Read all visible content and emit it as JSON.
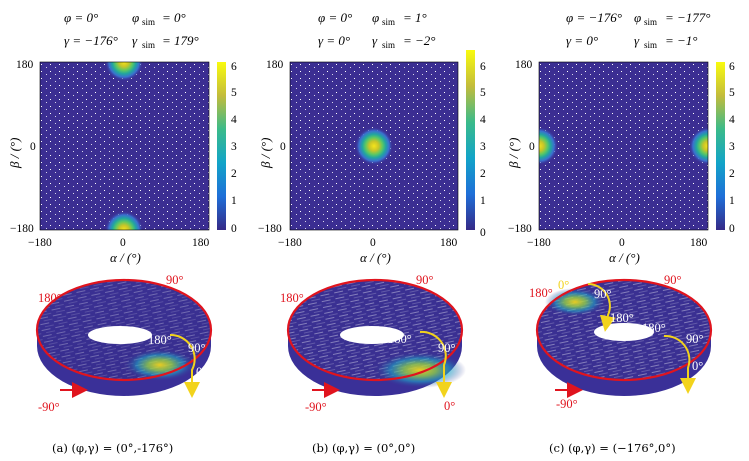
{
  "panels": [
    {
      "id": "a",
      "params": {
        "phi": "φ = 0°",
        "phi_sim_sym": "φ",
        "phi_sim_val": "= 0°",
        "gamma": "γ = −176°",
        "gamma_sim_sym": "γ",
        "gamma_sim_val": "= 179°",
        "sim": "sim"
      },
      "heatmap": {
        "blobs": [
          {
            "alpha": 0,
            "beta": 180
          },
          {
            "alpha": 0,
            "beta": -180
          }
        ]
      },
      "torus_labels": {
        "red": [
          "180°",
          "90°",
          "-90°"
        ],
        "yellow": [
          "180°",
          "90°",
          "0°"
        ]
      },
      "caption": "(a) (φ,γ) = (0°,-176°)"
    },
    {
      "id": "b",
      "params": {
        "phi": "φ = 0°",
        "phi_sim_sym": "φ",
        "phi_sim_val": "= 1°",
        "gamma": "γ = 0°",
        "gamma_sim_sym": "γ",
        "gamma_sim_val": "= −2°",
        "sim": "sim"
      },
      "heatmap": {
        "blobs": [
          {
            "alpha": 0,
            "beta": 0
          }
        ]
      },
      "torus_labels": {
        "red": [
          "180°",
          "90°",
          "-90°"
        ],
        "yellow": [
          "180°",
          "90°",
          "0°"
        ]
      },
      "caption": "(b) (φ,γ) = (0°,0°)"
    },
    {
      "id": "c",
      "params": {
        "phi": "φ = −176°",
        "phi_sim_sym": "φ",
        "phi_sim_val": "= −177°",
        "gamma": "γ = 0°",
        "gamma_sim_sym": "γ",
        "gamma_sim_val": "= −1°",
        "sim": "sim"
      },
      "heatmap": {
        "blobs": [
          {
            "alpha": -180,
            "beta": 0
          },
          {
            "alpha": 180,
            "beta": 0
          }
        ]
      },
      "torus_labels": {
        "red": [
          "180°",
          "90°",
          "-90°"
        ],
        "yellow": [
          "0°",
          "90°",
          "180°",
          "180°",
          "90°",
          "0°"
        ]
      },
      "caption": "(c) (φ,γ) = (−176°,0°)"
    }
  ],
  "axes": {
    "xlabel": "α / (°)",
    "ylabel": "β / (°)",
    "xticks": [
      "−180",
      "0",
      "180"
    ],
    "yticks": [
      "180",
      "0",
      "−180"
    ],
    "colorbar_ticks": [
      "6",
      "5",
      "4",
      "3",
      "2",
      "1",
      "0"
    ]
  },
  "colors": {
    "background": "#3b2e92",
    "peak": "#f5e51b",
    "torus_red": "#e0141e",
    "torus_yellow": "#f2d31c"
  }
}
